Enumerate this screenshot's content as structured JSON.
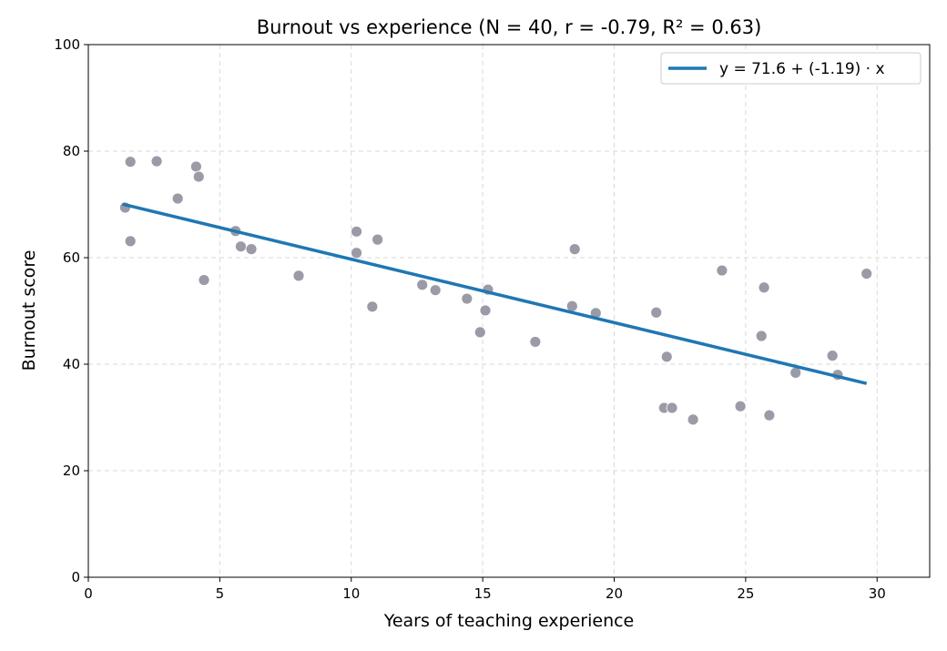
{
  "chart_data": {
    "type": "scatter",
    "title": "Burnout vs experience (N = 40, r = -0.79, R² = 0.63)",
    "xlabel": "Years of teaching experience",
    "ylabel": "Burnout score",
    "xlim": [
      0,
      32
    ],
    "ylim": [
      0,
      100
    ],
    "xticks": [
      0,
      5,
      10,
      15,
      20,
      25,
      30
    ],
    "yticks": [
      0,
      20,
      40,
      60,
      80,
      100
    ],
    "grid": true,
    "legend": {
      "position": "top-right",
      "entries": [
        "y = 71.6 + (-1.19) · x"
      ]
    },
    "series": [
      {
        "type": "scatter",
        "color": "#9a9ba6",
        "points": [
          [
            1.4,
            69.4
          ],
          [
            1.6,
            78.0
          ],
          [
            1.6,
            63.1
          ],
          [
            2.6,
            78.1
          ],
          [
            3.4,
            71.1
          ],
          [
            4.1,
            77.1
          ],
          [
            4.2,
            75.2
          ],
          [
            4.4,
            55.8
          ],
          [
            5.6,
            65.0
          ],
          [
            5.8,
            62.1
          ],
          [
            6.2,
            61.6
          ],
          [
            8.0,
            56.6
          ],
          [
            10.2,
            60.9
          ],
          [
            10.2,
            64.9
          ],
          [
            10.8,
            50.8
          ],
          [
            11.0,
            63.4
          ],
          [
            12.7,
            54.9
          ],
          [
            13.2,
            53.9
          ],
          [
            14.4,
            52.3
          ],
          [
            14.9,
            46.0
          ],
          [
            15.1,
            50.1
          ],
          [
            15.2,
            54.0
          ],
          [
            17.0,
            44.2
          ],
          [
            18.4,
            50.9
          ],
          [
            18.5,
            61.6
          ],
          [
            19.3,
            49.6
          ],
          [
            21.6,
            49.7
          ],
          [
            21.9,
            31.8
          ],
          [
            22.0,
            41.4
          ],
          [
            22.2,
            31.8
          ],
          [
            23.0,
            29.6
          ],
          [
            24.1,
            57.6
          ],
          [
            24.8,
            32.1
          ],
          [
            25.6,
            45.3
          ],
          [
            25.7,
            54.4
          ],
          [
            25.9,
            30.4
          ],
          [
            26.9,
            38.4
          ],
          [
            28.3,
            41.6
          ],
          [
            28.5,
            38.0
          ],
          [
            29.6,
            57.0
          ]
        ]
      },
      {
        "type": "line",
        "name": "y = 71.6 + (-1.19) · x",
        "color": "#1f77b4",
        "intercept": 71.6,
        "slope": -1.19,
        "x": [
          1.3,
          29.6
        ]
      }
    ]
  }
}
